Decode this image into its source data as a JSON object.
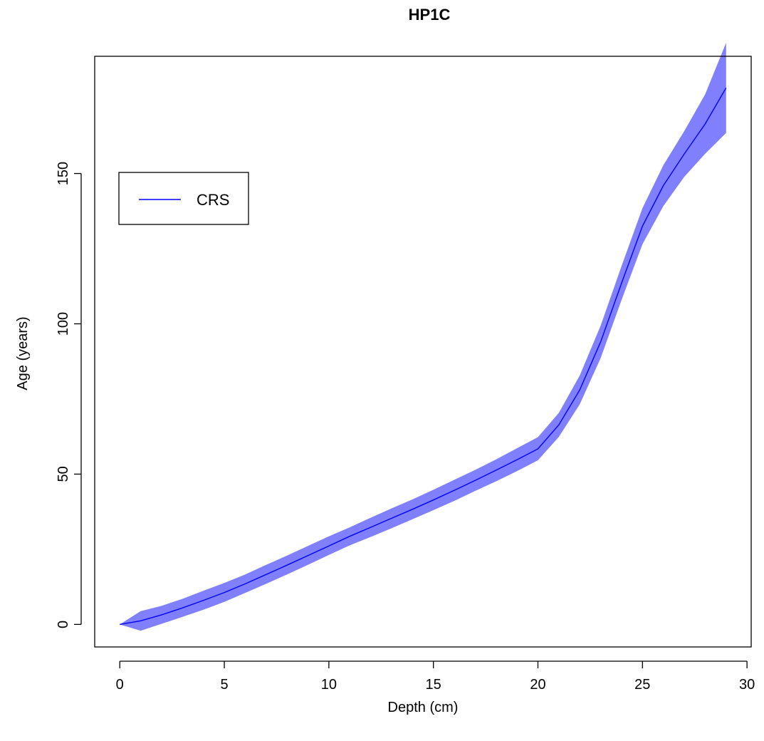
{
  "chart_data": {
    "type": "area",
    "title": "HP1C",
    "xlabel": "Depth (cm)",
    "ylabel": "Age (years)",
    "xlim": [
      -1.2,
      30.2
    ],
    "ylim": [
      -7.5,
      189
    ],
    "x_ticks": [
      0,
      5,
      10,
      15,
      20,
      25,
      30
    ],
    "x_tick_labels": [
      "0",
      "5",
      "10",
      "15",
      "20",
      "25",
      "30"
    ],
    "y_ticks": [
      0,
      50,
      100,
      150
    ],
    "y_tick_labels": [
      "0",
      "50",
      "100",
      "150"
    ],
    "grid": false,
    "legend": {
      "position": "top-left",
      "entries": [
        {
          "label": "CRS",
          "color": "#0000FF"
        }
      ]
    },
    "series": [
      {
        "name": "CRS",
        "color": "#0000FF",
        "band_color": "#8080FF",
        "x": [
          0,
          1,
          2,
          3,
          4,
          5,
          6,
          7,
          8,
          9,
          10,
          11,
          12,
          13,
          14,
          15,
          16,
          17,
          18,
          19,
          20,
          21,
          22,
          23,
          24,
          25,
          26,
          27,
          28,
          29
        ],
        "y": [
          0,
          1.2,
          3.2,
          5.5,
          8,
          10.6,
          13.5,
          16.6,
          19.7,
          22.9,
          26.1,
          29.3,
          32.3,
          35.3,
          38.3,
          41.4,
          44.6,
          47.9,
          51.3,
          54.8,
          58.4,
          66.4,
          78,
          94,
          113.5,
          132.5,
          146,
          156.5,
          166.5,
          178.5
        ],
        "lower": [
          0,
          -2.1,
          0.2,
          2.5,
          4.9,
          7.5,
          10.5,
          13.5,
          16.6,
          19.8,
          23.1,
          26.3,
          29.1,
          32,
          35,
          38,
          41.1,
          44.4,
          47.6,
          51,
          54.6,
          62.4,
          73.2,
          88.6,
          107.9,
          126.5,
          139.2,
          148.9,
          156.6,
          163.5
        ],
        "upper": [
          0,
          4.4,
          6.2,
          8.5,
          11.2,
          13.8,
          16.6,
          19.8,
          22.9,
          26.1,
          29.3,
          32.3,
          35.5,
          38.6,
          41.6,
          44.8,
          48.1,
          51.4,
          54.9,
          58.6,
          62.3,
          70.4,
          82.8,
          99.4,
          119.2,
          138.5,
          152.8,
          164.1,
          176.4,
          193.5
        ]
      }
    ]
  }
}
